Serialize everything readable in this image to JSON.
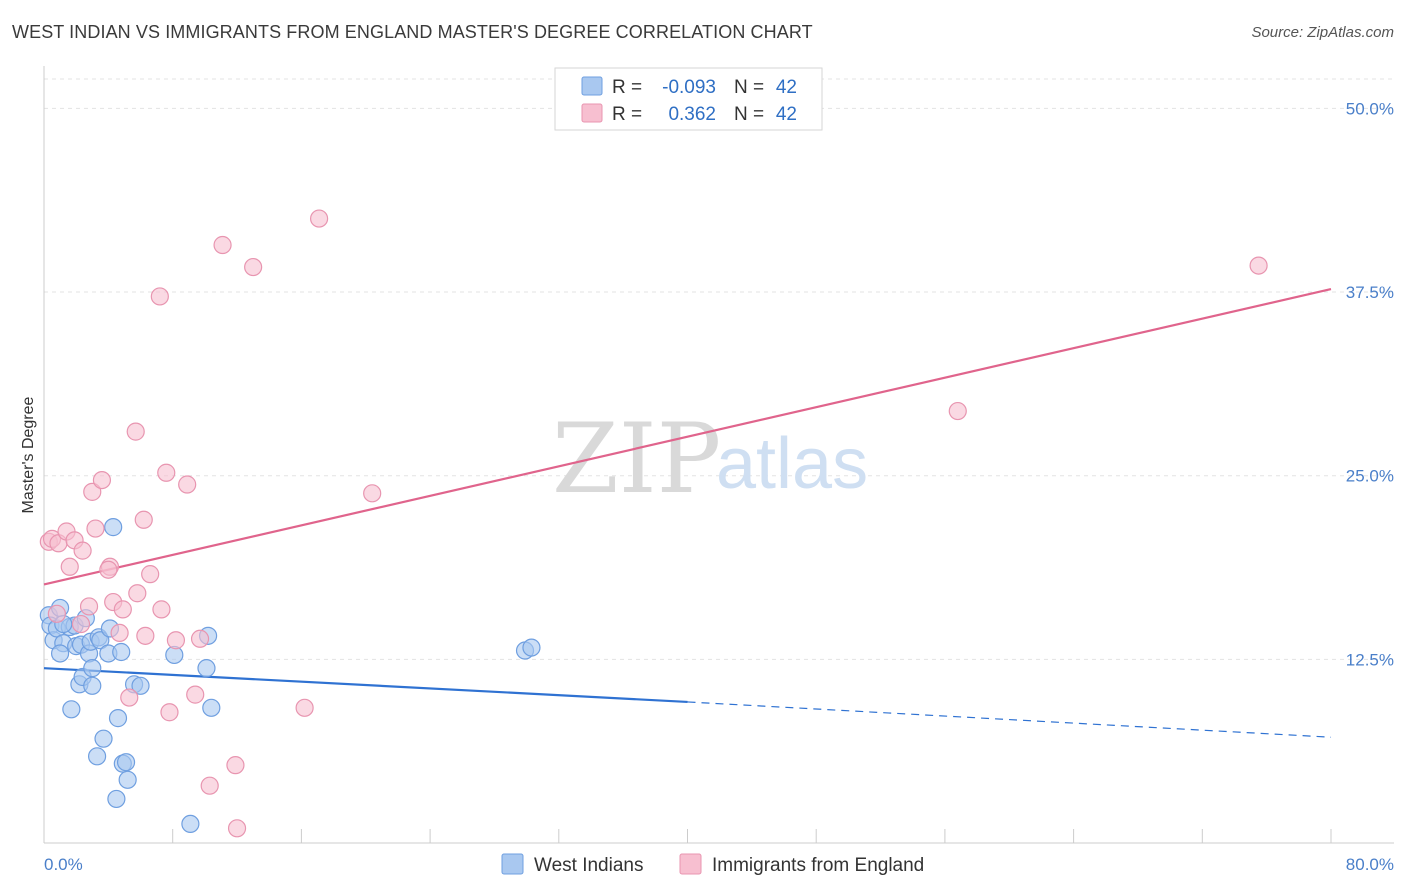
{
  "title": "WEST INDIAN VS IMMIGRANTS FROM ENGLAND MASTER'S DEGREE CORRELATION CHART",
  "source": "Source: ZipAtlas.com",
  "watermark": {
    "zip": "ZIP",
    "atlas": "atlas"
  },
  "legend": {
    "rows": [
      {
        "r_label": "R =",
        "r_value": "-0.093",
        "n_label": "N =",
        "n_value": "42",
        "color": "#a9c8f0",
        "stroke": "#6f9fe0"
      },
      {
        "r_label": "R =",
        "r_value": "0.362",
        "n_label": "N =",
        "n_value": "42",
        "color": "#f7bfd0",
        "stroke": "#e895b0"
      }
    ]
  },
  "bottom_legend": [
    {
      "label": "West Indians",
      "color": "#a9c8f0",
      "stroke": "#6f9fe0"
    },
    {
      "label": "Immigrants from England",
      "color": "#f7bfd0",
      "stroke": "#e895b0"
    }
  ],
  "chart_data": {
    "type": "scatter",
    "title": "WEST INDIAN VS IMMIGRANTS FROM ENGLAND MASTER'S DEGREE CORRELATION CHART",
    "xlabel": "",
    "ylabel": "Master's Degree",
    "xlim": [
      0,
      80
    ],
    "ylim": [
      0,
      52
    ],
    "x_tick_labels": {
      "min": "0.0%",
      "max": "80.0%"
    },
    "y_ticks": [
      {
        "value": 12.5,
        "label": "12.5%"
      },
      {
        "value": 25.0,
        "label": "25.0%"
      },
      {
        "value": 37.5,
        "label": "37.5%"
      },
      {
        "value": 50.0,
        "label": "50.0%"
      }
    ],
    "series": [
      {
        "name": "West Indians",
        "color": "#a9c8f0",
        "stroke": "#6f9fe0",
        "line_color": "#2f72d2",
        "trend": {
          "x0": 0,
          "y0": 11.9,
          "x1": 40,
          "y1": 9.6,
          "x_dash_end": 80,
          "y_dash_end": 7.2
        },
        "points": [
          [
            0.3,
            15.5
          ],
          [
            0.4,
            14.8
          ],
          [
            0.6,
            13.8
          ],
          [
            0.8,
            14.6
          ],
          [
            1.0,
            16.0
          ],
          [
            1.2,
            13.6
          ],
          [
            1.0,
            12.9
          ],
          [
            1.6,
            14.7
          ],
          [
            1.9,
            14.8
          ],
          [
            2.0,
            13.4
          ],
          [
            2.3,
            13.5
          ],
          [
            2.2,
            10.8
          ],
          [
            2.4,
            11.3
          ],
          [
            2.6,
            15.3
          ],
          [
            2.8,
            12.9
          ],
          [
            2.9,
            13.7
          ],
          [
            3.0,
            10.7
          ],
          [
            3.0,
            11.9
          ],
          [
            1.7,
            9.1
          ],
          [
            3.4,
            14.0
          ],
          [
            3.5,
            13.8
          ],
          [
            3.7,
            7.1
          ],
          [
            3.3,
            5.9
          ],
          [
            4.0,
            12.9
          ],
          [
            4.1,
            14.6
          ],
          [
            4.3,
            21.5
          ],
          [
            4.6,
            8.5
          ],
          [
            4.8,
            13.0
          ],
          [
            4.9,
            5.4
          ],
          [
            5.1,
            5.5
          ],
          [
            5.2,
            4.3
          ],
          [
            4.5,
            3.0
          ],
          [
            5.6,
            10.8
          ],
          [
            6.0,
            10.7
          ],
          [
            8.1,
            12.8
          ],
          [
            9.1,
            1.3
          ],
          [
            10.1,
            11.9
          ],
          [
            10.2,
            14.1
          ],
          [
            10.4,
            9.2
          ],
          [
            29.9,
            13.1
          ],
          [
            30.3,
            13.3
          ],
          [
            1.2,
            14.9
          ]
        ]
      },
      {
        "name": "Immigrants from England",
        "color": "#f7bfd0",
        "stroke": "#e895b0",
        "line_color": "#e0648c",
        "trend": {
          "x0": 0,
          "y0": 17.6,
          "x1": 80,
          "y1": 37.7
        },
        "points": [
          [
            0.3,
            20.5
          ],
          [
            0.5,
            20.7
          ],
          [
            0.8,
            15.6
          ],
          [
            0.9,
            20.4
          ],
          [
            1.4,
            21.2
          ],
          [
            1.6,
            18.8
          ],
          [
            1.9,
            20.6
          ],
          [
            2.4,
            19.9
          ],
          [
            2.8,
            16.1
          ],
          [
            3.0,
            23.9
          ],
          [
            3.2,
            21.4
          ],
          [
            3.6,
            24.7
          ],
          [
            4.1,
            18.8
          ],
          [
            4.0,
            18.6
          ],
          [
            4.3,
            16.4
          ],
          [
            4.7,
            14.3
          ],
          [
            4.9,
            15.9
          ],
          [
            5.3,
            9.9
          ],
          [
            5.7,
            28.0
          ],
          [
            5.8,
            17.0
          ],
          [
            6.2,
            22.0
          ],
          [
            6.3,
            14.1
          ],
          [
            6.6,
            18.3
          ],
          [
            7.2,
            37.2
          ],
          [
            7.3,
            15.9
          ],
          [
            7.6,
            25.2
          ],
          [
            7.8,
            8.9
          ],
          [
            8.2,
            13.8
          ],
          [
            8.9,
            24.4
          ],
          [
            9.4,
            10.1
          ],
          [
            9.7,
            13.9
          ],
          [
            10.3,
            3.9
          ],
          [
            11.1,
            40.7
          ],
          [
            11.9,
            5.3
          ],
          [
            12.0,
            1.0
          ],
          [
            13.0,
            39.2
          ],
          [
            16.2,
            9.2
          ],
          [
            17.1,
            42.5
          ],
          [
            20.4,
            23.8
          ],
          [
            56.8,
            29.4
          ],
          [
            75.5,
            39.3
          ],
          [
            2.3,
            14.9
          ]
        ]
      }
    ]
  }
}
